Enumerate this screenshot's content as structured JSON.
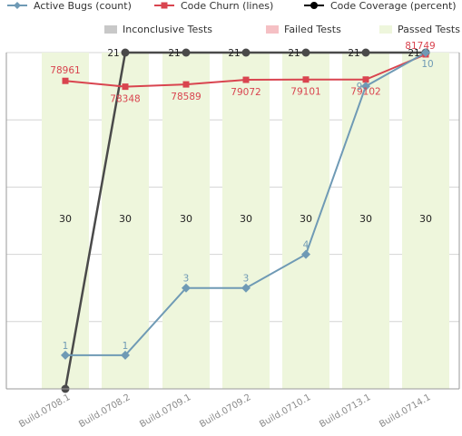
{
  "chart_data": {
    "type": "line",
    "categories": [
      "Build.0708.1",
      "Build.0708.2",
      "Build.0709.1",
      "Build.0709.2",
      "Build.0710.1",
      "Build.0713.1",
      "Build.0714.1"
    ],
    "legend": [
      {
        "name": "Active Bugs (count)",
        "color": "#6f9ab5",
        "marker": "diamond"
      },
      {
        "name": "Code Churn (lines)",
        "color": "#d9444f",
        "marker": "square"
      },
      {
        "name": "Code Coverage (percent)",
        "color": "#000000",
        "marker": "circle"
      },
      {
        "name": "Inconclusive Tests",
        "color": "#c8c8c8",
        "marker": "rect"
      },
      {
        "name": "Failed Tests",
        "color": "#f5c0c4",
        "marker": "rect"
      },
      {
        "name": "Passed Tests",
        "color": "#eef6dc",
        "marker": "rect"
      }
    ],
    "passed_tests": {
      "values": [
        30,
        30,
        30,
        30,
        30,
        30,
        30
      ],
      "color": "#eef6dc"
    },
    "series": [
      {
        "name": "Active Bugs (count)",
        "values": [
          1,
          1,
          3,
          3,
          4,
          9,
          10
        ],
        "color": "#6f9ab5",
        "marker": "diamond",
        "ylim": [
          0,
          10
        ]
      },
      {
        "name": "Code Churn (lines)",
        "values": [
          78961,
          78348,
          78589,
          79072,
          79101,
          79102,
          81749
        ],
        "color": "#d9444f",
        "marker": "square",
        "ylim": [
          0,
          81749
        ]
      },
      {
        "name": "Code Coverage (percent)",
        "values": [
          0,
          21,
          21,
          21,
          21,
          21,
          21
        ],
        "color": "#4a4a4a",
        "marker": "circle",
        "ylim": [
          0,
          21
        ]
      }
    ],
    "data_labels": {
      "bugs": [
        "1",
        "1",
        "3",
        "3",
        "4",
        "9",
        "10"
      ],
      "churn": [
        "78961",
        "78348",
        "78589",
        "79072",
        "79101",
        "79102",
        "81749"
      ],
      "coverage": [
        "",
        "21",
        "21",
        "21",
        "21",
        "21",
        "21"
      ],
      "tests": [
        "30",
        "30",
        "30",
        "30",
        "30",
        "30",
        "30"
      ]
    },
    "gridlines": 5,
    "legend_position": "top"
  }
}
